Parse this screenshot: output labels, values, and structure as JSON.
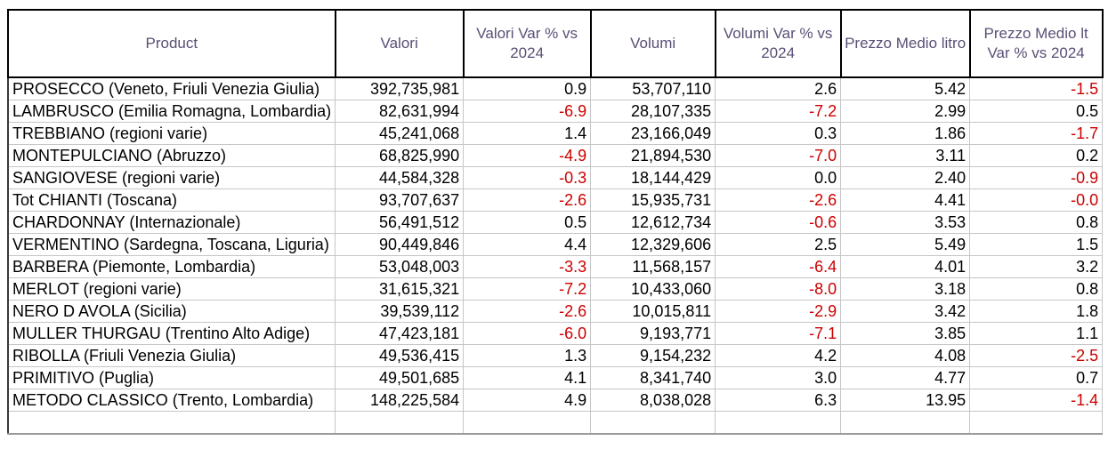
{
  "table": {
    "columns": [
      "Product",
      "Valori",
      "Valori Var % vs 2024",
      "Volumi",
      "Volumi Var % vs 2024",
      "Prezzo Medio litro",
      "Prezzo Medio lt Var % vs 2024"
    ],
    "rows": [
      [
        "PROSECCO  (Veneto, Friuli Venezia Giulia)",
        "392,735,981",
        "0.9",
        "53,707,110",
        "2.6",
        "5.42",
        "-1.5"
      ],
      [
        "LAMBRUSCO (Emilia Romagna, Lombardia)",
        "82,631,994",
        "-6.9",
        "28,107,335",
        "-7.2",
        "2.99",
        "0.5"
      ],
      [
        "TREBBIANO (regioni varie)",
        "45,241,068",
        "1.4",
        "23,166,049",
        "0.3",
        "1.86",
        "-1.7"
      ],
      [
        "MONTEPULCIANO (Abruzzo)",
        "68,825,990",
        "-4.9",
        "21,894,530",
        "-7.0",
        "3.11",
        "0.2"
      ],
      [
        "SANGIOVESE (regioni varie)",
        "44,584,328",
        "-0.3",
        "18,144,429",
        "0.0",
        "2.40",
        "-0.9"
      ],
      [
        "Tot CHIANTI (Toscana)",
        "93,707,637",
        "-2.6",
        "15,935,731",
        "-2.6",
        "4.41",
        "-0.0"
      ],
      [
        "CHARDONNAY  (Internazionale)",
        "56,491,512",
        "0.5",
        "12,612,734",
        "-0.6",
        "3.53",
        "0.8"
      ],
      [
        "VERMENTINO (Sardegna, Toscana, Liguria)",
        "90,449,846",
        "4.4",
        "12,329,606",
        "2.5",
        "5.49",
        "1.5"
      ],
      [
        "BARBERA (Piemonte, Lombardia)",
        "53,048,003",
        "-3.3",
        "11,568,157",
        "-6.4",
        "4.01",
        "3.2"
      ],
      [
        "MERLOT (regioni varie)",
        "31,615,321",
        "-7.2",
        "10,433,060",
        "-8.0",
        "3.18",
        "0.8"
      ],
      [
        "NERO D AVOLA (Sicilia)",
        "39,539,112",
        "-2.6",
        "10,015,811",
        "-2.9",
        "3.42",
        "1.8"
      ],
      [
        "MULLER THURGAU (Trentino Alto Adige)",
        "47,423,181",
        "-6.0",
        "9,193,771",
        "-7.1",
        "3.85",
        "1.1"
      ],
      [
        "RIBOLLA (Friuli Venezia Giulia)",
        "49,536,415",
        "1.3",
        "9,154,232",
        "4.2",
        "4.08",
        "-2.5"
      ],
      [
        "PRIMITIVO (Puglia)",
        "49,501,685",
        "4.1",
        "8,341,740",
        "3.0",
        "4.77",
        "0.7"
      ],
      [
        "METODO CLASSICO (Trento, Lombardia)",
        "148,225,584",
        "4.9",
        "8,038,028",
        "6.3",
        "13.95",
        "-1.4"
      ],
      [
        "",
        "",
        "",
        "",
        "",
        "",
        ""
      ]
    ]
  },
  "colors": {
    "header_text": "#5b4e76",
    "negative_value": "#cc0000",
    "positive_value": "#000000",
    "grid_line": "#c6c6c6",
    "header_border": "#000000"
  }
}
